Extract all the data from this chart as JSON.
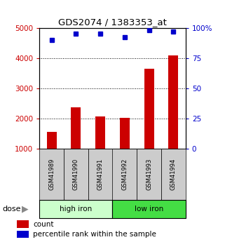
{
  "title": "GDS2074 / 1383353_at",
  "samples": [
    "GSM41989",
    "GSM41990",
    "GSM41991",
    "GSM41992",
    "GSM41993",
    "GSM41994"
  ],
  "counts": [
    1550,
    2370,
    2080,
    2020,
    3640,
    4080
  ],
  "percentiles": [
    90,
    95,
    95,
    92,
    98,
    97
  ],
  "bar_color": "#cc0000",
  "dot_color": "#0000cc",
  "left_axis_color": "#cc0000",
  "right_axis_color": "#0000cc",
  "ylim_left": [
    1000,
    5000
  ],
  "ylim_right": [
    0,
    100
  ],
  "yticks_left": [
    1000,
    2000,
    3000,
    4000,
    5000
  ],
  "yticks_right": [
    0,
    25,
    50,
    75,
    100
  ],
  "ytick_labels_right": [
    "0",
    "25",
    "50",
    "75",
    "100%"
  ],
  "background_color": "#ffffff",
  "label_count": "count",
  "label_percentile": "percentile rank within the sample",
  "dose_label": "dose",
  "sample_bg_color": "#cccccc",
  "high_iron_bg": "#ccffcc",
  "low_iron_bg": "#44dd44",
  "grid_color": "#000000",
  "bar_width": 0.4
}
